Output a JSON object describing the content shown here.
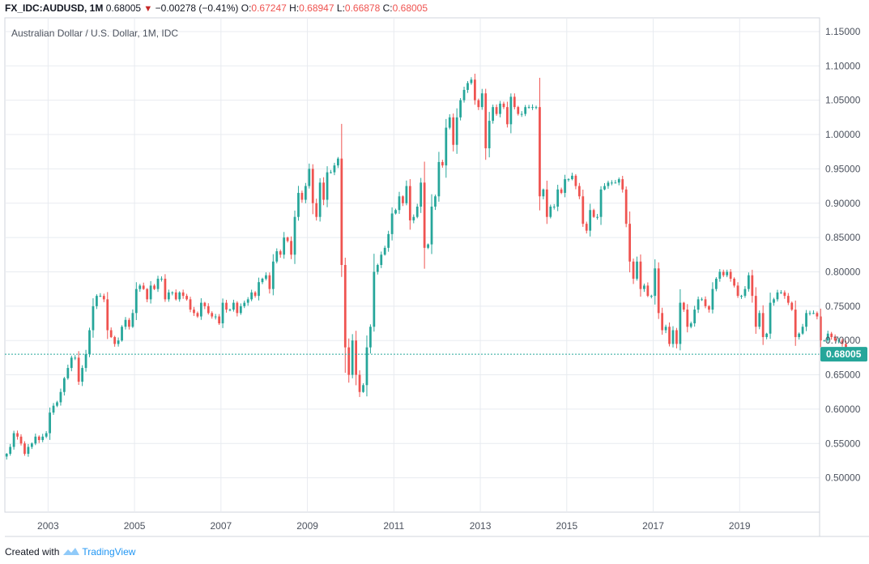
{
  "header": {
    "symbol": "FX_IDC:AUDUSD, 1M",
    "last": "0.68005",
    "change": "−0.00278 (−0.41%)",
    "o_label": "O:",
    "o_value": "0.67247",
    "h_label": "H:",
    "h_value": "0.68947",
    "l_label": "L:",
    "l_value": "0.66878",
    "c_label": "C:",
    "c_value": "0.68005"
  },
  "footer": {
    "created_with": "Created with",
    "brand": "TradingView"
  },
  "colors": {
    "up": "#26a69a",
    "down": "#ef5350",
    "grid": "#e8ebf0",
    "price_line": "#26a69a",
    "tag_bg": "#26a69a"
  },
  "chart_data": {
    "type": "candlestick",
    "title": "Australian Dollar / U.S. Dollar, 1M, IDC",
    "ylim": [
      0.45,
      1.17
    ],
    "xlim": [
      2002.0,
      2020.85
    ],
    "y_ticks": [
      "0.50000",
      "0.55000",
      "0.60000",
      "0.65000",
      "0.70000",
      "0.75000",
      "0.80000",
      "0.85000",
      "0.90000",
      "0.95000",
      "1.00000",
      "1.05000",
      "1.10000",
      "1.15000"
    ],
    "x_ticks": [
      "2003",
      "2005",
      "2007",
      "2009",
      "2011",
      "2013",
      "2015",
      "2017",
      "2019"
    ],
    "last_price": 0.68005,
    "last_price_label": "0.68005",
    "start": 2002.0,
    "interval": "1M",
    "closes": [
      0.535,
      0.545,
      0.565,
      0.56,
      0.55,
      0.535,
      0.545,
      0.55,
      0.56,
      0.555,
      0.56,
      0.565,
      0.595,
      0.605,
      0.61,
      0.625,
      0.645,
      0.66,
      0.675,
      0.675,
      0.64,
      0.66,
      0.68,
      0.715,
      0.75,
      0.765,
      0.765,
      0.76,
      0.715,
      0.705,
      0.695,
      0.7,
      0.72,
      0.73,
      0.72,
      0.74,
      0.775,
      0.78,
      0.775,
      0.76,
      0.78,
      0.775,
      0.79,
      0.79,
      0.76,
      0.77,
      0.77,
      0.76,
      0.77,
      0.765,
      0.76,
      0.745,
      0.74,
      0.735,
      0.755,
      0.75,
      0.74,
      0.735,
      0.735,
      0.725,
      0.755,
      0.745,
      0.745,
      0.755,
      0.74,
      0.75,
      0.755,
      0.76,
      0.77,
      0.765,
      0.785,
      0.79,
      0.795,
      0.775,
      0.815,
      0.83,
      0.825,
      0.85,
      0.845,
      0.825,
      0.88,
      0.915,
      0.905,
      0.925,
      0.95,
      0.9,
      0.88,
      0.93,
      0.905,
      0.945,
      0.945,
      0.955,
      0.965,
      0.81,
      0.69,
      0.65,
      0.7,
      0.65,
      0.625,
      0.635,
      0.69,
      0.72,
      0.8,
      0.81,
      0.825,
      0.835,
      0.855,
      0.885,
      0.89,
      0.91,
      0.9,
      0.925,
      0.875,
      0.88,
      0.895,
      0.93,
      0.835,
      0.84,
      0.895,
      0.91,
      0.96,
      0.955,
      1.01,
      1.025,
      0.985,
      1.025,
      1.05,
      1.065,
      1.075,
      1.08,
      1.05,
      1.04,
      1.06,
      0.98,
      1.02,
      1.04,
      1.03,
      1.045,
      1.04,
      1.015,
      1.055,
      1.04,
      1.03,
      1.03,
      1.04,
      1.04,
      1.04,
      1.04,
      0.91,
      0.92,
      0.88,
      0.895,
      0.895,
      0.92,
      0.915,
      0.935,
      0.935,
      0.94,
      0.925,
      0.91,
      0.87,
      0.86,
      0.89,
      0.88,
      0.88,
      0.92,
      0.925,
      0.93,
      0.93,
      0.93,
      0.935,
      0.92,
      0.87,
      0.815,
      0.79,
      0.815,
      0.775,
      0.78,
      0.765,
      0.765,
      0.805,
      0.74,
      0.715,
      0.72,
      0.695,
      0.715,
      0.695,
      0.755,
      0.745,
      0.72,
      0.725,
      0.745,
      0.76,
      0.76,
      0.75,
      0.745,
      0.775,
      0.79,
      0.8,
      0.795,
      0.8,
      0.79,
      0.78,
      0.765,
      0.765,
      0.775,
      0.795,
      0.765,
      0.72,
      0.74,
      0.705,
      0.71,
      0.755,
      0.76,
      0.77,
      0.77,
      0.765,
      0.755,
      0.745,
      0.705,
      0.71,
      0.72,
      0.74,
      0.74,
      0.74,
      0.735,
      0.7,
      0.7,
      0.71,
      0.705,
      0.7,
      0.7,
      0.695,
      0.68,
      0.68
    ]
  }
}
